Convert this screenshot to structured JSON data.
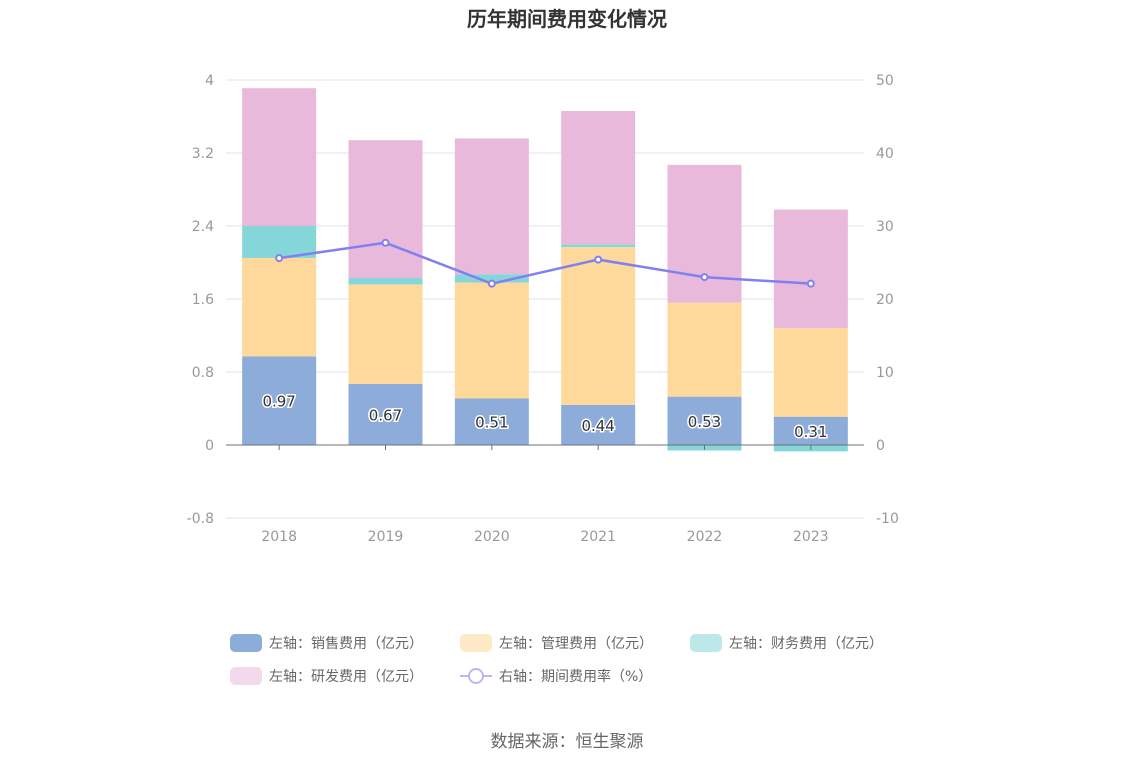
{
  "chart_data": {
    "type": "bar",
    "title": "历年期间费用变化情况",
    "categories": [
      "2018",
      "2019",
      "2020",
      "2021",
      "2022",
      "2023"
    ],
    "stacked": true,
    "series": [
      {
        "name": "左轴：销售费用（亿元）",
        "axis": "left",
        "values": [
          0.97,
          0.67,
          0.51,
          0.44,
          0.53,
          0.31
        ],
        "color": "#8eacd9",
        "show_labels": true
      },
      {
        "name": "左轴：管理费用（亿元）",
        "axis": "left",
        "values": [
          1.08,
          1.09,
          1.27,
          1.73,
          1.03,
          0.97
        ],
        "color": "#ffd99b"
      },
      {
        "name": "左轴：财务费用（亿元）",
        "axis": "left",
        "values": [
          0.35,
          0.07,
          0.09,
          0.03,
          -0.06,
          -0.07
        ],
        "color": "#85d6d9"
      },
      {
        "name": "左轴：研发费用（亿元）",
        "axis": "left",
        "values": [
          1.51,
          1.51,
          1.49,
          1.46,
          1.51,
          1.3
        ],
        "color": "#e8b9da"
      },
      {
        "name": "右轴：期间费用率（%）",
        "axis": "right",
        "type": "line",
        "values": [
          25.6,
          27.7,
          22.1,
          25.4,
          23.0,
          22.1
        ],
        "color": "#8080f0"
      }
    ],
    "left_axis": {
      "ylim": [
        -0.8,
        4
      ],
      "ticks": [
        "4",
        "3.2",
        "2.4",
        "1.6",
        "0.8",
        "0",
        "-0.8"
      ],
      "tick_values": [
        4,
        3.2,
        2.4,
        1.6,
        0.8,
        0,
        -0.8
      ]
    },
    "right_axis": {
      "ylim": [
        -10,
        50
      ],
      "ticks": [
        "50",
        "40",
        "30",
        "20",
        "10",
        "0",
        "-10"
      ],
      "tick_values": [
        50,
        40,
        30,
        20,
        10,
        0,
        -10
      ]
    },
    "grid": true,
    "legend_position": "bottom"
  },
  "source": "数据来源：恒生聚源"
}
